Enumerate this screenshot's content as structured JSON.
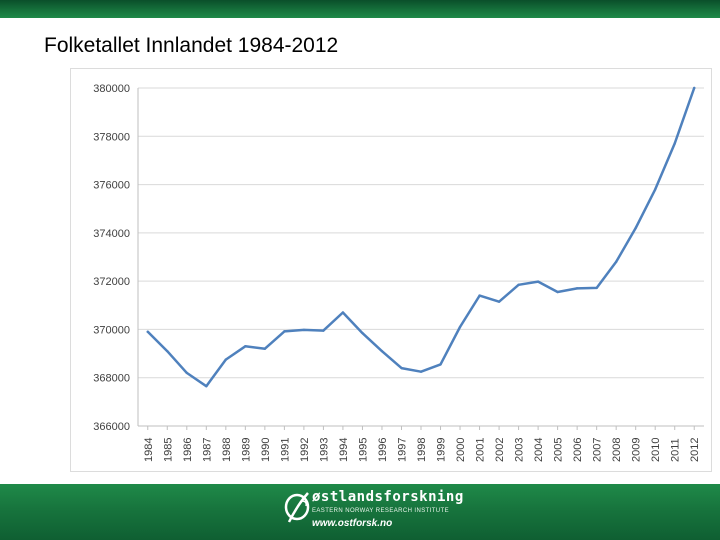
{
  "slide": {
    "title": "Folketallet Innlandet 1984-2012"
  },
  "footer": {
    "brand_name": "østlandsforskning",
    "brand_subtitle": "EASTERN NORWAY RESEARCH INSTITUTE",
    "brand_url": "www.ostforsk.no",
    "logo_icon": "leaf-circle-icon"
  },
  "colors": {
    "line": "#4f81bd",
    "footer_green": "#17743d",
    "grid": "#d9d9d9"
  },
  "chart_data": {
    "type": "line",
    "title": "",
    "xlabel": "",
    "ylabel": "",
    "ylim": [
      366000,
      380000
    ],
    "yticks": [
      "380000",
      "378000",
      "376000",
      "374000",
      "372000",
      "370000",
      "368000",
      "366000"
    ],
    "grid": true,
    "legend": "none",
    "categories": [
      "1984",
      "1985",
      "1986",
      "1987",
      "1988",
      "1989",
      "1990",
      "1991",
      "1992",
      "1993",
      "1994",
      "1995",
      "1996",
      "1997",
      "1998",
      "1999",
      "2000",
      "2001",
      "2002",
      "2003",
      "2004",
      "2005",
      "2006",
      "2007",
      "2008",
      "2009",
      "2010",
      "2011",
      "2012"
    ],
    "series": [
      {
        "values": [
          369900,
          369100,
          368200,
          367650,
          368750,
          369300,
          369200,
          369920,
          369980,
          369950,
          370700,
          369850,
          369100,
          368400,
          368250,
          368550,
          370100,
          371400,
          371150,
          371850,
          371980,
          371550,
          371700,
          371720,
          372800,
          374200,
          375800,
          377700,
          380000
        ]
      }
    ]
  }
}
